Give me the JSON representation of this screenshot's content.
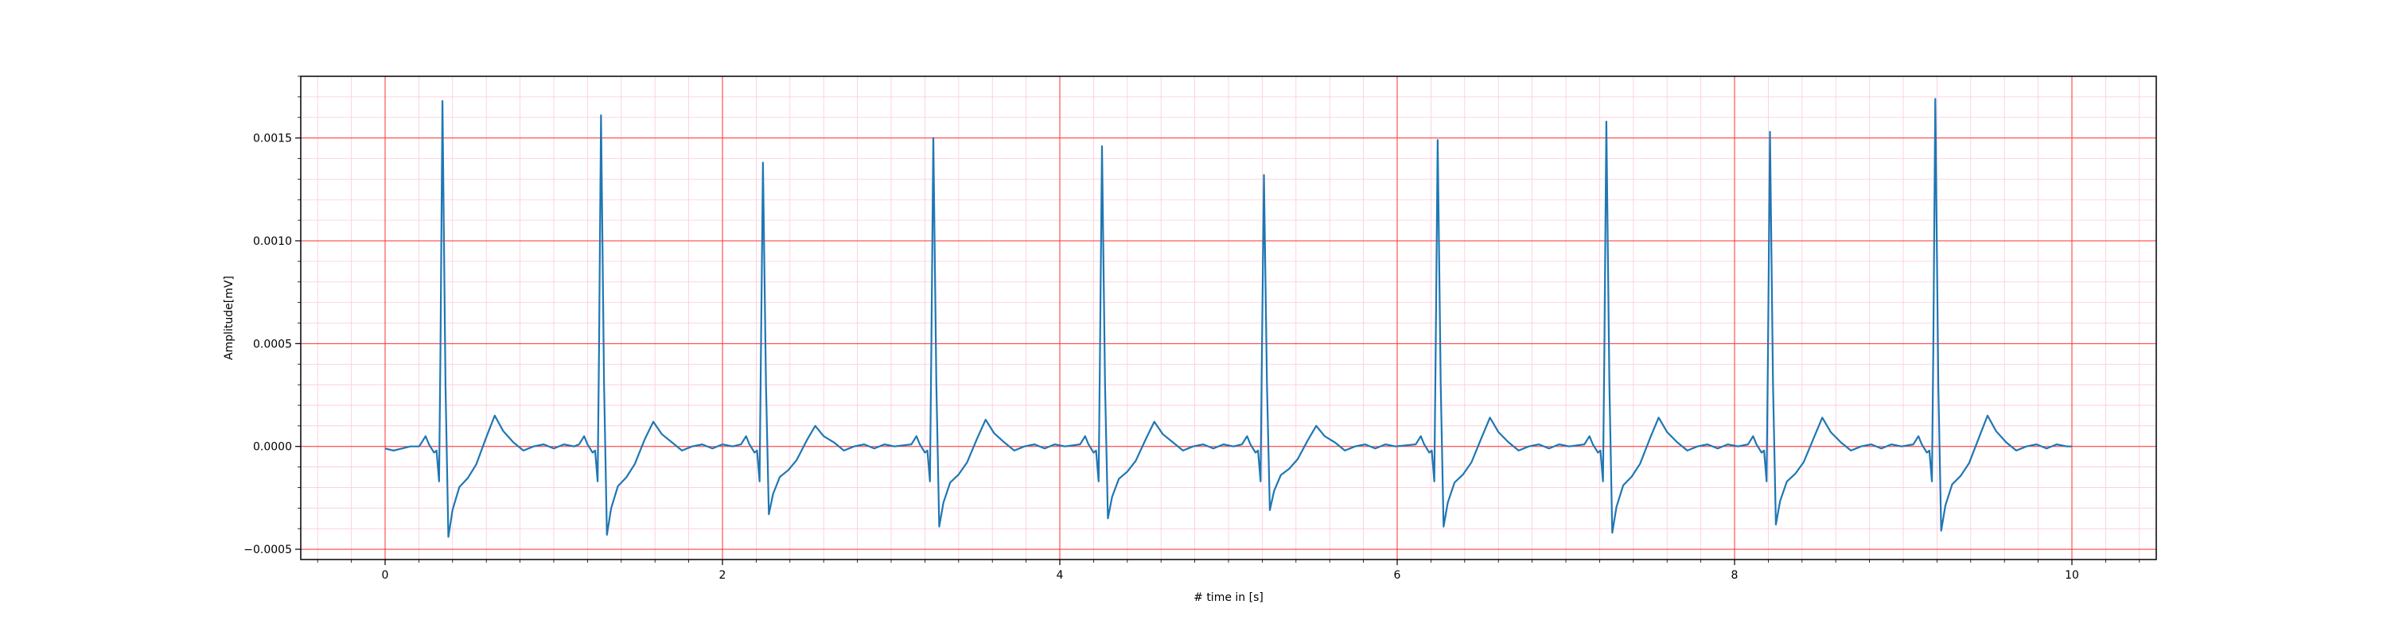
{
  "chart_data": {
    "type": "line",
    "title": "",
    "xlabel": "# time in [s]",
    "ylabel": "Amplitude[mV]",
    "xlim": [
      -0.5,
      10.5
    ],
    "ylim": [
      -0.00055,
      0.0018
    ],
    "x_ticks": [
      0,
      2,
      4,
      6,
      8,
      10
    ],
    "x_tick_labels": [
      "0",
      "2",
      "4",
      "6",
      "8",
      "10"
    ],
    "y_ticks": [
      -0.0005,
      0.0,
      0.0005,
      0.001,
      0.0015
    ],
    "y_tick_labels": [
      "−0.0005",
      "0.0000",
      "0.0005",
      "0.0010",
      "0.0015"
    ],
    "grid": {
      "major": true,
      "minor": true,
      "major_color": "#ff3030",
      "minor_color": "#ffc8d8"
    },
    "line_color": "#1f77b4",
    "series": [
      {
        "x_start": 0.0,
        "x_end": 10.0,
        "baseline_points": [
          [
            0.0,
            -1e-05
          ],
          [
            0.05,
            -2e-05
          ],
          [
            0.1,
            -1e-05
          ],
          [
            0.15,
            0.0
          ],
          [
            0.2,
            0.0
          ]
        ],
        "beats": [
          {
            "r_time": 0.34,
            "r_peak": 0.00168,
            "s_min": -0.00044,
            "t_peak": 0.00015
          },
          {
            "r_time": 1.28,
            "r_peak": 0.00161,
            "s_min": -0.00043,
            "t_peak": 0.00012
          },
          {
            "r_time": 2.24,
            "r_peak": 0.00138,
            "s_min": -0.00033,
            "t_peak": 0.0001
          },
          {
            "r_time": 3.25,
            "r_peak": 0.0015,
            "s_min": -0.00039,
            "t_peak": 0.00013
          },
          {
            "r_time": 4.25,
            "r_peak": 0.00146,
            "s_min": -0.00035,
            "t_peak": 0.00012
          },
          {
            "r_time": 5.21,
            "r_peak": 0.00132,
            "s_min": -0.00031,
            "t_peak": 0.0001
          },
          {
            "r_time": 6.24,
            "r_peak": 0.00149,
            "s_min": -0.00039,
            "t_peak": 0.00014
          },
          {
            "r_time": 7.24,
            "r_peak": 0.00158,
            "s_min": -0.00042,
            "t_peak": 0.00014
          },
          {
            "r_time": 8.21,
            "r_peak": 0.00153,
            "s_min": -0.00038,
            "t_peak": 0.00014
          },
          {
            "r_time": 9.19,
            "r_peak": 0.00169,
            "s_min": -0.00041,
            "t_peak": 0.00015
          }
        ]
      }
    ]
  }
}
